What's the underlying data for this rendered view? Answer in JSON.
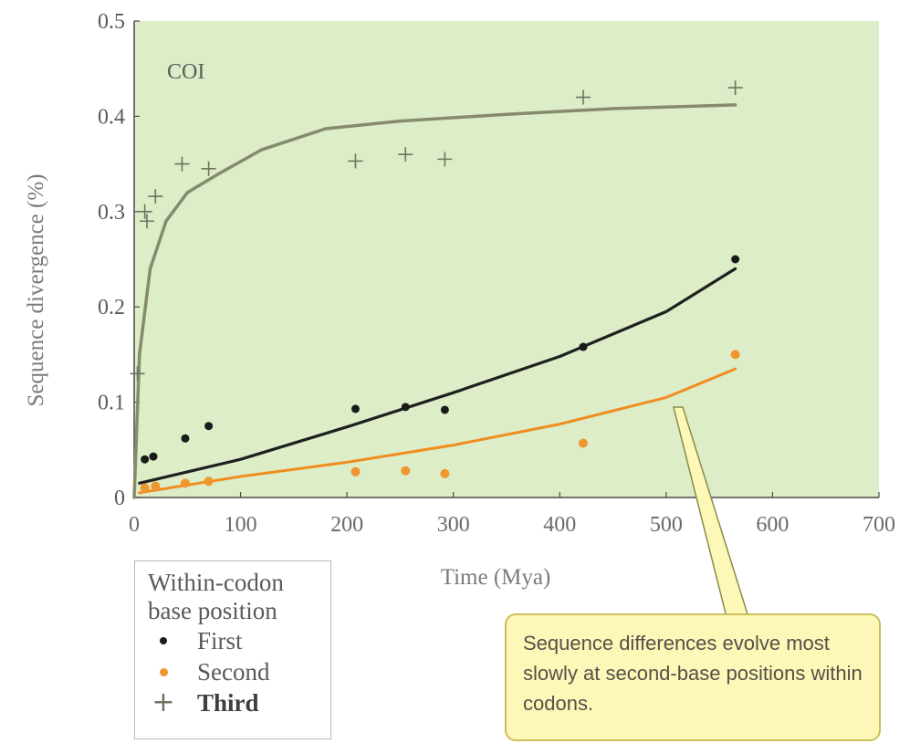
{
  "chart_data": {
    "type": "scatter",
    "panel_label": "COI",
    "xlabel": "Time (Mya)",
    "ylabel": "Sequence divergence (%)",
    "xlim": [
      0,
      700
    ],
    "ylim": [
      0,
      0.5
    ],
    "x_ticks": [
      "0",
      "100",
      "200",
      "300",
      "400",
      "500",
      "600",
      "700"
    ],
    "y_ticks": [
      "0",
      "0.1",
      "0.2",
      "0.3",
      "0.4",
      "0.5"
    ],
    "grid": false,
    "background_color": "#dcedc7",
    "series": [
      {
        "name": "First",
        "marker": "dot",
        "color": "#1a1a1a",
        "points": [
          [
            10,
            0.04
          ],
          [
            18,
            0.043
          ],
          [
            48,
            0.062
          ],
          [
            70,
            0.075
          ],
          [
            208,
            0.093
          ],
          [
            255,
            0.095
          ],
          [
            292,
            0.092
          ],
          [
            422,
            0.158
          ],
          [
            565,
            0.25
          ]
        ],
        "fit": [
          [
            5,
            0.015
          ],
          [
            100,
            0.04
          ],
          [
            200,
            0.074
          ],
          [
            300,
            0.11
          ],
          [
            400,
            0.148
          ],
          [
            500,
            0.195
          ],
          [
            565,
            0.24
          ]
        ]
      },
      {
        "name": "Second",
        "marker": "dot",
        "color": "#f0962e",
        "points": [
          [
            10,
            0.01
          ],
          [
            20,
            0.012
          ],
          [
            48,
            0.015
          ],
          [
            70,
            0.017
          ],
          [
            208,
            0.027
          ],
          [
            255,
            0.028
          ],
          [
            292,
            0.025
          ],
          [
            422,
            0.057
          ],
          [
            565,
            0.15
          ]
        ],
        "fit": [
          [
            5,
            0.005
          ],
          [
            100,
            0.022
          ],
          [
            200,
            0.037
          ],
          [
            300,
            0.055
          ],
          [
            400,
            0.077
          ],
          [
            500,
            0.105
          ],
          [
            565,
            0.135
          ]
        ]
      },
      {
        "name": "Third",
        "marker": "plus",
        "color": "#6d7560",
        "points": [
          [
            3,
            0.13
          ],
          [
            10,
            0.3
          ],
          [
            12,
            0.29
          ],
          [
            20,
            0.316
          ],
          [
            45,
            0.35
          ],
          [
            70,
            0.345
          ],
          [
            208,
            0.353
          ],
          [
            255,
            0.36
          ],
          [
            292,
            0.355
          ],
          [
            422,
            0.42
          ],
          [
            565,
            0.43
          ]
        ],
        "fit": [
          [
            0,
            0.0
          ],
          [
            5,
            0.15
          ],
          [
            15,
            0.24
          ],
          [
            30,
            0.29
          ],
          [
            50,
            0.32
          ],
          [
            80,
            0.34
          ],
          [
            120,
            0.365
          ],
          [
            180,
            0.387
          ],
          [
            250,
            0.395
          ],
          [
            350,
            0.402
          ],
          [
            450,
            0.408
          ],
          [
            565,
            0.412
          ]
        ]
      }
    ]
  },
  "legend": {
    "title_line1": "Within-codon",
    "title_line2": "base position",
    "items": [
      {
        "label": "First",
        "color": "#1a1a1a"
      },
      {
        "label": "Second",
        "color": "#f0962e"
      },
      {
        "label": "Third",
        "color": "#6d7560"
      }
    ]
  },
  "callout": {
    "text": "Sequence differences evolve most slowly at second-base positions within codons."
  }
}
